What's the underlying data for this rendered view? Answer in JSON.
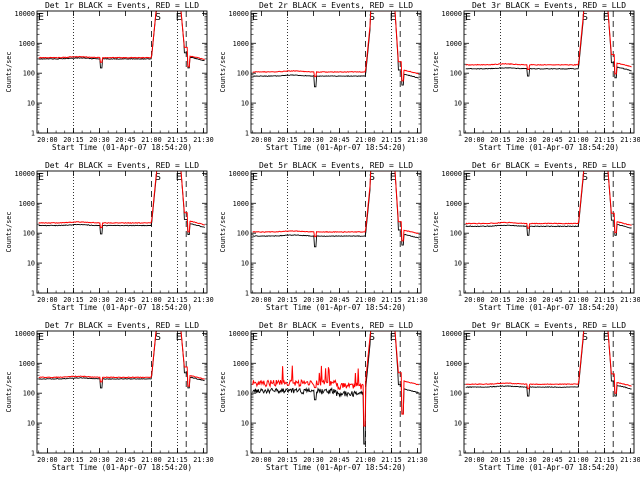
{
  "chart_data": [
    {
      "type": "line",
      "det": "1r",
      "title": "Det 1r BLACK = Events, RED = LLD",
      "base_black": 300,
      "base_red": 330,
      "dip": {
        "start": 20.505,
        "end": 20.53,
        "level": 150
      },
      "noisy": false,
      "x_axis_ticks": [
        "20:00",
        "20:15",
        "20:30",
        "20:45",
        "21:00",
        "21:15",
        "21:30"
      ],
      "xlabel": "Start Time (01-Apr-07 18:54:20)",
      "ylabel": "Counts/sec",
      "y_axis_ticks": [
        "1",
        "10",
        "100",
        "1000",
        "10000"
      ],
      "ylim": [
        1,
        12000
      ],
      "xlim": [
        "19:54",
        "21:32"
      ],
      "markers": [
        "S",
        "E"
      ],
      "legend": "title: BLACK = Events, RED = LLD",
      "series": [
        {
          "name": "Events",
          "color": "#000000"
        },
        {
          "name": "LLD",
          "color": "#ff0000"
        }
      ]
    },
    {
      "type": "line",
      "det": "2r",
      "title": "Det 2r BLACK = Events, RED = LLD",
      "base_black": 80,
      "base_red": 110,
      "dip": {
        "start": 20.505,
        "end": 20.53,
        "level": 35
      },
      "noisy": false,
      "x_axis_ticks": [
        "20:00",
        "20:15",
        "20:30",
        "20:45",
        "21:00",
        "21:15",
        "21:30"
      ],
      "xlabel": "Start Time (01-Apr-07 18:54:20)",
      "ylabel": "Counts/sec",
      "y_axis_ticks": [
        "1",
        "10",
        "100",
        "1000",
        "10000"
      ],
      "ylim": [
        1,
        12000
      ],
      "xlim": [
        "19:54",
        "21:32"
      ],
      "markers": [
        "S",
        "E"
      ],
      "legend": "title: BLACK = Events, RED = LLD",
      "series": [
        {
          "name": "Events",
          "color": "#000000"
        },
        {
          "name": "LLD",
          "color": "#ff0000"
        }
      ]
    },
    {
      "type": "line",
      "det": "3r",
      "title": "Det 3r BLACK = Events, RED = LLD",
      "base_black": 140,
      "base_red": 190,
      "dip": {
        "start": 20.505,
        "end": 20.53,
        "level": 80
      },
      "noisy": false,
      "x_axis_ticks": [
        "20:00",
        "20:15",
        "20:30",
        "20:45",
        "21:00",
        "21:15",
        "21:30"
      ],
      "xlabel": "Start Time (01-Apr-07 18:54:20)",
      "ylabel": "Counts/sec",
      "y_axis_ticks": [
        "1",
        "10",
        "100",
        "1000",
        "10000"
      ],
      "ylim": [
        1,
        12000
      ],
      "xlim": [
        "19:54",
        "21:32"
      ],
      "markers": [
        "S",
        "E"
      ],
      "legend": "title: BLACK = Events, RED = LLD",
      "series": [
        {
          "name": "Events",
          "color": "#000000"
        },
        {
          "name": "LLD",
          "color": "#ff0000"
        }
      ]
    },
    {
      "type": "line",
      "det": "4r",
      "title": "Det 4r BLACK = Events, RED = LLD",
      "base_black": 180,
      "base_red": 220,
      "dip": {
        "start": 20.505,
        "end": 20.53,
        "level": 95
      },
      "noisy": false,
      "x_axis_ticks": [
        "20:00",
        "20:15",
        "20:30",
        "20:45",
        "21:00",
        "21:15",
        "21:30"
      ],
      "xlabel": "Start Time (01-Apr-07 18:54:20)",
      "ylabel": "Counts/sec",
      "y_axis_ticks": [
        "1",
        "10",
        "100",
        "1000",
        "10000"
      ],
      "ylim": [
        1,
        12000
      ],
      "xlim": [
        "19:54",
        "21:32"
      ],
      "markers": [
        "S",
        "E"
      ],
      "legend": "title: BLACK = Events, RED = LLD",
      "series": [
        {
          "name": "Events",
          "color": "#000000"
        },
        {
          "name": "LLD",
          "color": "#ff0000"
        }
      ]
    },
    {
      "type": "line",
      "det": "5r",
      "title": "Det 5r BLACK = Events, RED = LLD",
      "base_black": 80,
      "base_red": 110,
      "dip": {
        "start": 20.505,
        "end": 20.53,
        "level": 35
      },
      "noisy": false,
      "x_axis_ticks": [
        "20:00",
        "20:15",
        "20:30",
        "20:45",
        "21:00",
        "21:15",
        "21:30"
      ],
      "xlabel": "Start Time (01-Apr-07 18:54:20)",
      "ylabel": "Counts/sec",
      "y_axis_ticks": [
        "1",
        "10",
        "100",
        "1000",
        "10000"
      ],
      "ylim": [
        1,
        12000
      ],
      "xlim": [
        "19:54",
        "21:32"
      ],
      "markers": [
        "S",
        "E"
      ],
      "legend": "title: BLACK = Events, RED = LLD",
      "series": [
        {
          "name": "Events",
          "color": "#000000"
        },
        {
          "name": "LLD",
          "color": "#ff0000"
        }
      ]
    },
    {
      "type": "line",
      "det": "6r",
      "title": "Det 6r BLACK = Events, RED = LLD",
      "base_black": 170,
      "base_red": 210,
      "dip": {
        "start": 20.505,
        "end": 20.53,
        "level": 85
      },
      "noisy": false,
      "x_axis_ticks": [
        "20:00",
        "20:15",
        "20:30",
        "20:45",
        "21:00",
        "21:15",
        "21:30"
      ],
      "xlabel": "Start Time (01-Apr-07 18:54:20)",
      "ylabel": "Counts/sec",
      "y_axis_ticks": [
        "1",
        "10",
        "100",
        "1000",
        "10000"
      ],
      "ylim": [
        1,
        12000
      ],
      "xlim": [
        "19:54",
        "21:32"
      ],
      "markers": [
        "S",
        "E"
      ],
      "legend": "title: BLACK = Events, RED = LLD",
      "series": [
        {
          "name": "Events",
          "color": "#000000"
        },
        {
          "name": "LLD",
          "color": "#ff0000"
        }
      ]
    },
    {
      "type": "line",
      "det": "7r",
      "title": "Det 7r BLACK = Events, RED = LLD",
      "base_black": 300,
      "base_red": 340,
      "dip": {
        "start": 20.505,
        "end": 20.53,
        "level": 150
      },
      "noisy": false,
      "x_axis_ticks": [
        "20:00",
        "20:15",
        "20:30",
        "20:45",
        "21:00",
        "21:15",
        "21:30"
      ],
      "xlabel": "Start Time (01-Apr-07 18:54:20)",
      "ylabel": "Counts/sec",
      "y_axis_ticks": [
        "1",
        "10",
        "100",
        "1000",
        "10000"
      ],
      "ylim": [
        1,
        12000
      ],
      "xlim": [
        "19:54",
        "21:32"
      ],
      "markers": [
        "S",
        "E"
      ],
      "legend": "title: BLACK = Events, RED = LLD",
      "series": [
        {
          "name": "Events",
          "color": "#000000"
        },
        {
          "name": "LLD",
          "color": "#ff0000"
        }
      ]
    },
    {
      "type": "line",
      "det": "8r",
      "title": "Det 8r BLACK = Events, RED = LLD",
      "base_black": 120,
      "base_red": 220,
      "dip": {
        "start": 20.505,
        "end": 20.53,
        "level": 60
      },
      "noisy": true,
      "x_axis_ticks": [
        "20:00",
        "20:15",
        "20:30",
        "20:45",
        "21:00",
        "21:15",
        "21:30"
      ],
      "xlabel": "Start Time (01-Apr-07 18:54:20)",
      "ylabel": "Counts/sec",
      "y_axis_ticks": [
        "1",
        "10",
        "100",
        "1000",
        "10000"
      ],
      "ylim": [
        1,
        12000
      ],
      "xlim": [
        "19:54",
        "21:32"
      ],
      "markers": [
        "S",
        "E"
      ],
      "legend": "title: BLACK = Events, RED = LLD",
      "series": [
        {
          "name": "Events",
          "color": "#000000"
        },
        {
          "name": "LLD",
          "color": "#ff0000"
        }
      ]
    },
    {
      "type": "line",
      "det": "9r",
      "title": "Det 9r BLACK = Events, RED = LLD",
      "base_black": 160,
      "base_red": 200,
      "dip": {
        "start": 20.505,
        "end": 20.53,
        "level": 80
      },
      "noisy": false,
      "x_axis_ticks": [
        "20:00",
        "20:15",
        "20:30",
        "20:45",
        "21:00",
        "21:15",
        "21:30"
      ],
      "xlabel": "Start Time (01-Apr-07 18:54:20)",
      "ylabel": "Counts/sec",
      "y_axis_ticks": [
        "1",
        "10",
        "100",
        "1000",
        "10000"
      ],
      "ylim": [
        1,
        12000
      ],
      "xlim": [
        "19:54",
        "21:32"
      ],
      "markers": [
        "S",
        "E"
      ],
      "legend": "title: BLACK = Events, RED = LLD",
      "series": [
        {
          "name": "Events",
          "color": "#000000"
        },
        {
          "name": "LLD",
          "color": "#ff0000"
        }
      ]
    }
  ],
  "colors": {
    "events": "#000000",
    "lld": "#ff0000",
    "background": "#ffffff"
  }
}
